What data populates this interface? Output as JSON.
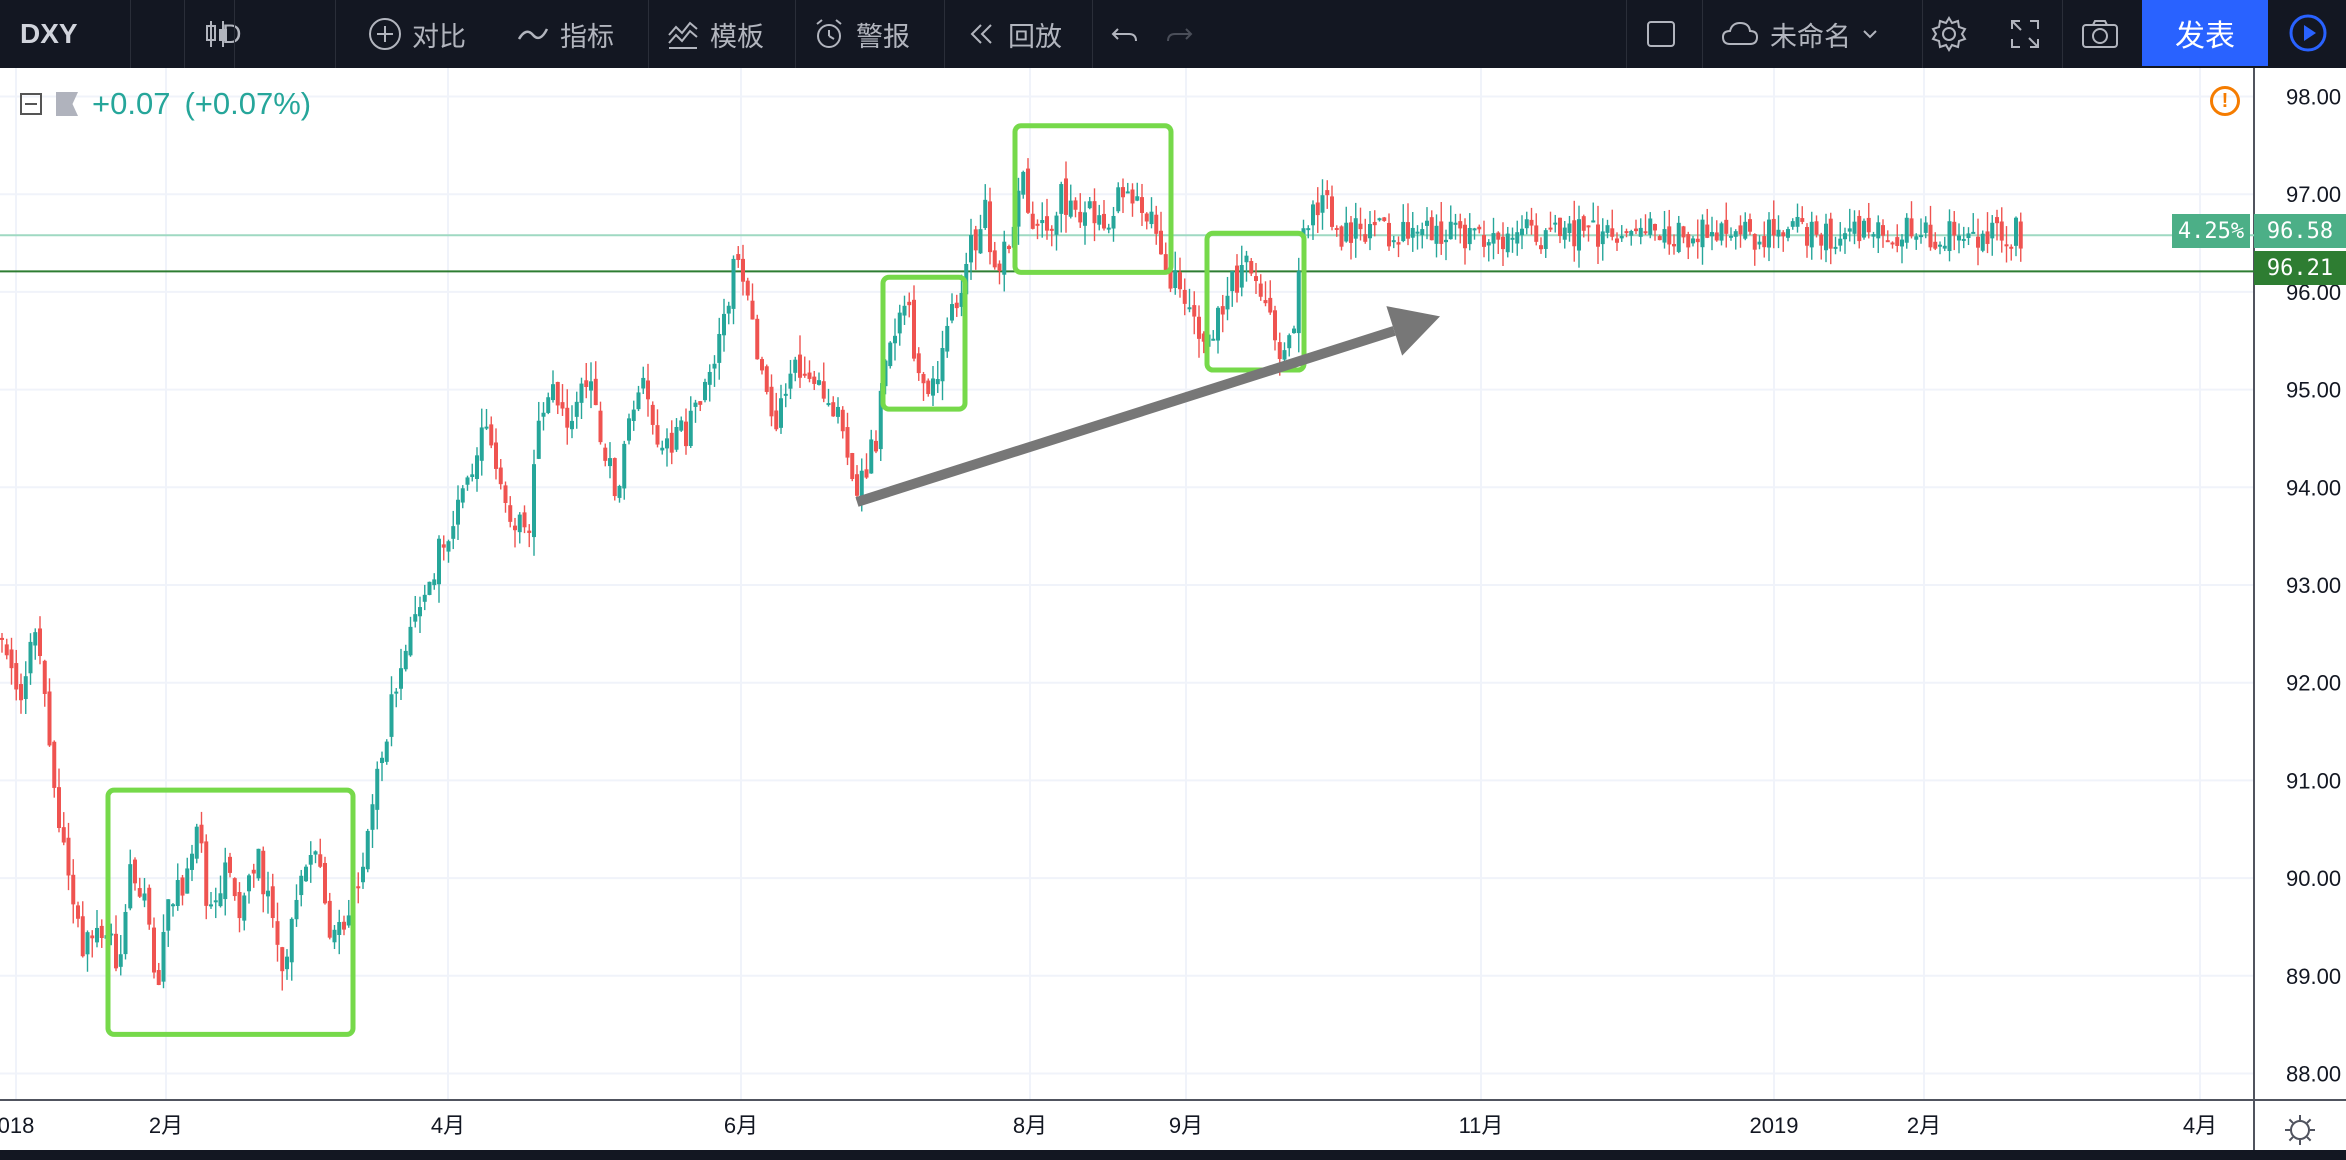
{
  "toolbar": {
    "symbol": "DXY",
    "interval": "D",
    "compare_label": "对比",
    "indicators_label": "指标",
    "templates_label": "模板",
    "alert_label": "警报",
    "replay_label": "回放",
    "layout_name": "未命名",
    "publish_label": "发表"
  },
  "status": {
    "change": "+0.07",
    "change_pct": "(+0.07%)"
  },
  "price_scale": {
    "labels": [
      "98.00",
      "97.00",
      "96.00",
      "95.00",
      "94.00",
      "93.00",
      "92.00",
      "91.00",
      "90.00",
      "89.00",
      "88.00"
    ],
    "tags": [
      {
        "name": "percent-change-tag",
        "text": "4.25%",
        "color": "#4caf87"
      },
      {
        "name": "last-price-tag",
        "text": "96.58",
        "color": "#4caf87"
      },
      {
        "name": "reference-price-tag",
        "text": "96.21",
        "color": "#2e7d32"
      }
    ]
  },
  "time_scale": {
    "labels": [
      "018",
      "2月",
      "4月",
      "6月",
      "8月",
      "9月",
      "11月",
      "2019",
      "2月",
      "4月"
    ]
  },
  "chart_data": {
    "type": "candlestick",
    "title": "",
    "series_name": "DXY",
    "interval": "D",
    "ylim": [
      87.8,
      98.2
    ],
    "y_ticks": [
      88,
      89,
      90,
      91,
      92,
      93,
      94,
      95,
      96,
      97,
      98
    ],
    "x_tick_labels": [
      "018",
      "2月",
      "4月",
      "6月",
      "8月",
      "9月",
      "11月",
      "2019",
      "2月",
      "4月"
    ],
    "up_color": "#26a69a",
    "down_color": "#ef5350",
    "grid": true,
    "horizontal_lines": [
      {
        "value": 96.58,
        "label": "96.58",
        "color": "#9fd9c2"
      },
      {
        "value": 96.21,
        "label": "96.21",
        "color": "#2e7d32"
      }
    ],
    "close_path": [
      [
        0,
        92.4
      ],
      [
        18,
        91.9
      ],
      [
        38,
        92.5
      ],
      [
        45,
        91.9
      ],
      [
        52,
        90.9
      ],
      [
        65,
        90.3
      ],
      [
        80,
        89.3
      ],
      [
        95,
        89.5
      ],
      [
        108,
        89.5
      ],
      [
        118,
        88.8
      ],
      [
        130,
        90.3
      ],
      [
        140,
        89.9
      ],
      [
        150,
        89.6
      ],
      [
        158,
        88.8
      ],
      [
        170,
        89.9
      ],
      [
        182,
        89.9
      ],
      [
        198,
        90.5
      ],
      [
        210,
        89.6
      ],
      [
        225,
        90.1
      ],
      [
        240,
        89.7
      ],
      [
        258,
        90.3
      ],
      [
        272,
        89.5
      ],
      [
        285,
        89.0
      ],
      [
        300,
        90.0
      ],
      [
        315,
        90.3
      ],
      [
        330,
        89.4
      ],
      [
        345,
        89.4
      ],
      [
        355,
        89.9
      ],
      [
        368,
        90.5
      ],
      [
        378,
        91.0
      ],
      [
        392,
        91.9
      ],
      [
        410,
        92.4
      ],
      [
        428,
        93.0
      ],
      [
        445,
        93.5
      ],
      [
        460,
        93.8
      ],
      [
        470,
        94.0
      ],
      [
        485,
        94.7
      ],
      [
        500,
        94.0
      ],
      [
        515,
        93.6
      ],
      [
        530,
        93.6
      ],
      [
        540,
        94.8
      ],
      [
        555,
        95.1
      ],
      [
        570,
        94.5
      ],
      [
        585,
        95.2
      ],
      [
        600,
        94.5
      ],
      [
        615,
        94.0
      ],
      [
        630,
        94.6
      ],
      [
        645,
        95.1
      ],
      [
        660,
        94.2
      ],
      [
        675,
        94.5
      ],
      [
        690,
        94.6
      ],
      [
        705,
        95.1
      ],
      [
        715,
        95.3
      ],
      [
        725,
        95.9
      ],
      [
        740,
        96.4
      ],
      [
        750,
        95.7
      ],
      [
        765,
        95.0
      ],
      [
        778,
        94.7
      ],
      [
        792,
        95.3
      ],
      [
        805,
        95.1
      ],
      [
        820,
        95.1
      ],
      [
        835,
        94.8
      ],
      [
        845,
        94.5
      ],
      [
        857,
        93.9
      ],
      [
        868,
        94.2
      ],
      [
        878,
        94.6
      ],
      [
        888,
        95.4
      ],
      [
        900,
        95.7
      ],
      [
        910,
        95.7
      ],
      [
        922,
        95.0
      ],
      [
        935,
        95.0
      ],
      [
        945,
        95.6
      ],
      [
        958,
        95.9
      ],
      [
        970,
        96.4
      ],
      [
        985,
        96.9
      ],
      [
        995,
        96.2
      ],
      [
        1005,
        96.4
      ],
      [
        1015,
        96.7
      ],
      [
        1022,
        97.3
      ],
      [
        1035,
        96.6
      ],
      [
        1048,
        96.6
      ],
      [
        1062,
        97.0
      ],
      [
        1078,
        96.7
      ],
      [
        1092,
        96.9
      ],
      [
        1105,
        96.7
      ],
      [
        1118,
        97.0
      ],
      [
        1130,
        96.9
      ],
      [
        1145,
        96.8
      ],
      [
        1158,
        96.6
      ],
      [
        1170,
        96.0
      ],
      [
        1180,
        96.1
      ],
      [
        1192,
        95.8
      ],
      [
        1203,
        95.3
      ],
      [
        1215,
        95.7
      ],
      [
        1228,
        96.0
      ],
      [
        1242,
        96.2
      ],
      [
        1255,
        96.3
      ],
      [
        1262,
        95.8
      ],
      [
        1272,
        95.6
      ],
      [
        1283,
        95.4
      ],
      [
        1295,
        95.8
      ],
      [
        1303,
        96.5
      ],
      [
        1315,
        96.9
      ],
      [
        1325,
        97.1
      ],
      [
        1338,
        96.6
      ],
      [
        1350,
        96.6
      ]
    ]
  },
  "annotations": {
    "boxes": [
      {
        "name": "consolidation-box-feb-apr",
        "from": 108,
        "to": 353,
        "low": 88.4,
        "high": 90.9
      },
      {
        "name": "consolidation-box-oct",
        "from": 883,
        "to": 965,
        "low": 94.8,
        "high": 96.15
      },
      {
        "name": "consolidation-box-nov-dec",
        "from": 1015,
        "to": 1171,
        "low": 96.2,
        "high": 97.7
      },
      {
        "name": "consolidation-box-jan-feb",
        "from": 1207,
        "to": 1304,
        "low": 95.2,
        "high": 96.6
      }
    ],
    "trend_arrow": {
      "from": [
        857,
        93.85
      ],
      "to": [
        1440,
        95.75
      ],
      "color": "#777777"
    }
  }
}
